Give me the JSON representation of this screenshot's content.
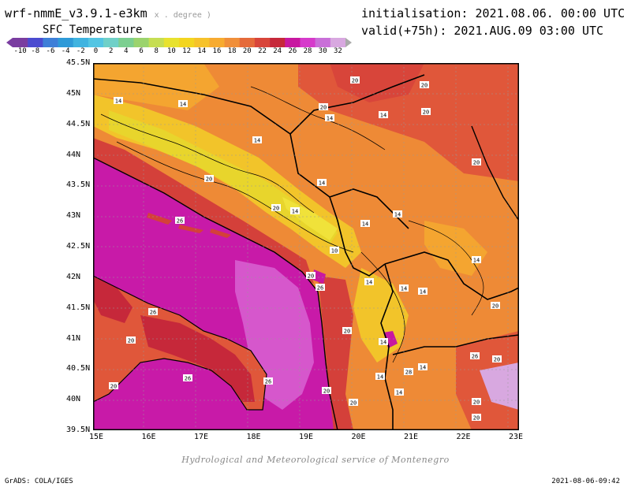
{
  "header": {
    "model": "wrf-nmmE_v3.9.1-e3km",
    "units_note": "x . degree )",
    "field": "SFC Temperature",
    "init": "initialisation: 2021.08.06. 00:00 UTC",
    "valid": "valid(+75h): 2021.AUG.09 03:00 UTC"
  },
  "colorbar": {
    "ticks": [
      "-10",
      "-8",
      "-6",
      "-4",
      "-2",
      "0",
      "2",
      "4",
      "6",
      "8",
      "10",
      "12",
      "14",
      "16",
      "18",
      "20",
      "22",
      "24",
      "26",
      "28",
      "30",
      "32"
    ],
    "colors": [
      "#7a3da0",
      "#4b4bd0",
      "#3e7fd8",
      "#2e9ad8",
      "#3fb3e0",
      "#53c5e3",
      "#6fd0c8",
      "#7ccf90",
      "#9bd36d",
      "#c6de53",
      "#e8e22e",
      "#f3d520",
      "#f6c22a",
      "#f7ab30",
      "#f08f3a",
      "#e56a3a",
      "#d8453a",
      "#c6283a",
      "#c818a0",
      "#d63acb",
      "#c96fd8",
      "#d8a8e0"
    ]
  },
  "map": {
    "lat_labels": [
      "45.5N",
      "45N",
      "44.5N",
      "44N",
      "43.5N",
      "43N",
      "42.5N",
      "42N",
      "41.5N",
      "41N",
      "40.5N",
      "40N",
      "39.5N"
    ],
    "lon_labels": [
      "15E",
      "16E",
      "17E",
      "18E",
      "19E",
      "20E",
      "21E",
      "22E",
      "23E"
    ],
    "contour_labels": [
      "14",
      "20",
      "20",
      "20",
      "14",
      "14",
      "14",
      "20",
      "14",
      "20",
      "20",
      "14",
      "20",
      "26",
      "14",
      "14",
      "14",
      "10",
      "20",
      "26",
      "14",
      "14",
      "26",
      "20",
      "14",
      "20",
      "14",
      "14",
      "26",
      "20",
      "26",
      "20",
      "20",
      "28",
      "26",
      "20",
      "20",
      "20",
      "14",
      "20",
      "14",
      "14"
    ]
  },
  "footer": {
    "credit": "Hydrological and Meteorological service of Montenegro",
    "grads": "GrADS: COLA/IGES",
    "stamp": "2021-08-06-09:42"
  }
}
